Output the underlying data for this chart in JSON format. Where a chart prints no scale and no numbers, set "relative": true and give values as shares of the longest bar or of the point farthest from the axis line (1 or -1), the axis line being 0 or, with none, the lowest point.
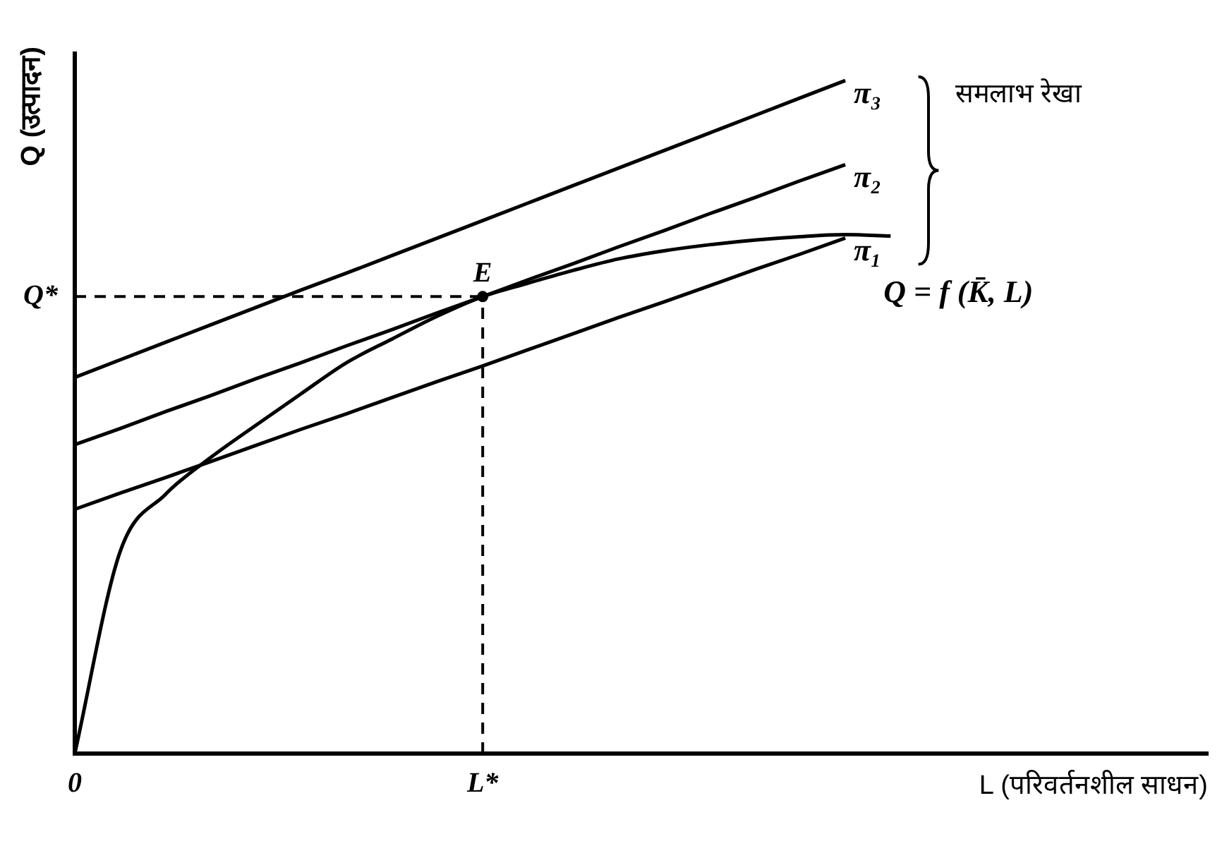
{
  "chart_data": {
    "type": "line",
    "relative": true,
    "xlabel": "L (परिवर्तनशील साधन)",
    "ylabel": "Q (उत्पादन)",
    "legend": false,
    "grid": false,
    "categories": [
      "0",
      null,
      null,
      null,
      null,
      null,
      null,
      null,
      null,
      "L*",
      null,
      null,
      null,
      null,
      null,
      null,
      null,
      null,
      null,
      null,
      null,
      null,
      null,
      null,
      null,
      null
    ],
    "series": [
      {
        "name": "π₃",
        "color": "#000000",
        "values": [
          0.559,
          0.585,
          0.611,
          0.637,
          0.663,
          0.689,
          0.714,
          0.74,
          0.766,
          0.792,
          0.818,
          0.844,
          0.87,
          0.896,
          0.922,
          0.948,
          0.974,
          1,
          null,
          null,
          null,
          null,
          null,
          null,
          null,
          null
        ]
      },
      {
        "name": "π₂",
        "color": "#000000",
        "values": [
          0.459,
          0.483,
          0.508,
          0.532,
          0.557,
          0.581,
          0.606,
          0.63,
          0.655,
          0.679,
          0.704,
          0.728,
          0.753,
          0.777,
          0.802,
          0.826,
          0.851,
          0.875,
          null,
          null,
          null,
          null,
          null,
          null,
          null,
          null
        ]
      },
      {
        "name": "π₁",
        "color": "#000000",
        "values": [
          0.363,
          0.387,
          0.41,
          0.434,
          0.458,
          0.482,
          0.505,
          0.529,
          0.553,
          0.576,
          0.6,
          0.624,
          0.648,
          0.671,
          0.695,
          0.719,
          0.742,
          0.766,
          null,
          null,
          null,
          null,
          null,
          null,
          null,
          null
        ]
      },
      {
        "name": "Q = f (K̄, L)",
        "color": "#000000",
        "values": [
          0,
          0.3,
          0.385,
          0.44,
          0.488,
          0.535,
          0.581,
          0.616,
          0.65,
          0.679,
          0.699,
          0.718,
          0.735,
          0.747,
          0.756,
          0.763,
          0.768,
          0.771,
          0.769,
          null,
          null,
          null,
          null,
          null,
          null,
          null
        ]
      }
    ],
    "ref_lines": [
      {
        "axis": "y",
        "value": 0.679,
        "label": "Q*",
        "line_style": "dashed"
      }
    ],
    "annotations": [
      {
        "text": "E",
        "x": "L*",
        "y": 0.679
      },
      "समलाभ रेखा"
    ]
  }
}
